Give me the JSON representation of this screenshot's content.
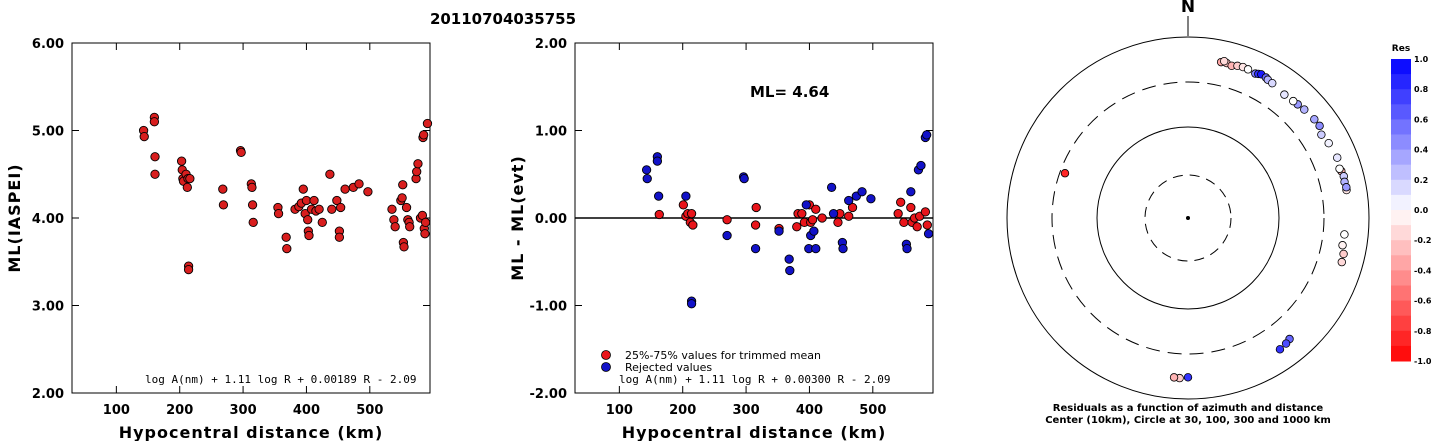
{
  "chart_data": [
    {
      "type": "scatter",
      "title": "20110704035755",
      "xlabel": "Hypocentral distance (km)",
      "ylabel": "ML(IASPEI)",
      "xlim": [
        30,
        595
      ],
      "ylim": [
        2.0,
        6.0
      ],
      "xticks": [
        "100",
        "200",
        "300",
        "400",
        "500"
      ],
      "yticks": [
        "2.00",
        "3.00",
        "4.00",
        "5.00",
        "6.00"
      ],
      "formula": "log A(nm) + 1.11 log R + 0.00189 R - 2.09",
      "points": [
        [
          143,
          5.0
        ],
        [
          144,
          4.93
        ],
        [
          160,
          5.15
        ],
        [
          160,
          5.1
        ],
        [
          161,
          4.7
        ],
        [
          161,
          4.5
        ],
        [
          203,
          4.65
        ],
        [
          204,
          4.55
        ],
        [
          205,
          4.45
        ],
        [
          206,
          4.42
        ],
        [
          210,
          4.5
        ],
        [
          212,
          4.35
        ],
        [
          213,
          4.45
        ],
        [
          216,
          4.45
        ],
        [
          214,
          3.45
        ],
        [
          214,
          3.41
        ],
        [
          268,
          4.33
        ],
        [
          269,
          4.15
        ],
        [
          296,
          4.77
        ],
        [
          297,
          4.75
        ],
        [
          313,
          4.39
        ],
        [
          314,
          4.35
        ],
        [
          315,
          4.15
        ],
        [
          316,
          3.95
        ],
        [
          355,
          4.12
        ],
        [
          356,
          4.05
        ],
        [
          368,
          3.78
        ],
        [
          369,
          3.65
        ],
        [
          382,
          4.1
        ],
        [
          388,
          4.13
        ],
        [
          392,
          4.17
        ],
        [
          395,
          4.33
        ],
        [
          398,
          4.05
        ],
        [
          400,
          4.2
        ],
        [
          402,
          3.98
        ],
        [
          403,
          3.85
        ],
        [
          404,
          3.8
        ],
        [
          408,
          4.1
        ],
        [
          412,
          4.2
        ],
        [
          415,
          4.08
        ],
        [
          420,
          4.1
        ],
        [
          425,
          3.95
        ],
        [
          437,
          4.5
        ],
        [
          440,
          4.1
        ],
        [
          448,
          4.2
        ],
        [
          452,
          3.85
        ],
        [
          452,
          3.78
        ],
        [
          454,
          4.12
        ],
        [
          461,
          4.33
        ],
        [
          474,
          4.35
        ],
        [
          483,
          4.39
        ],
        [
          497,
          4.3
        ],
        [
          535,
          4.1
        ],
        [
          538,
          3.98
        ],
        [
          540,
          3.9
        ],
        [
          549,
          4.2
        ],
        [
          551,
          4.23
        ],
        [
          552,
          4.38
        ],
        [
          553,
          3.72
        ],
        [
          554,
          3.67
        ],
        [
          558,
          4.12
        ],
        [
          560,
          3.98
        ],
        [
          562,
          3.95
        ],
        [
          563,
          3.9
        ],
        [
          573,
          4.45
        ],
        [
          574,
          4.53
        ],
        [
          576,
          4.62
        ],
        [
          580,
          4.0
        ],
        [
          583,
          4.03
        ],
        [
          584,
          4.92
        ],
        [
          585,
          4.95
        ],
        [
          586,
          3.88
        ],
        [
          587,
          3.82
        ],
        [
          588,
          3.95
        ],
        [
          591,
          5.08
        ]
      ]
    },
    {
      "type": "scatter",
      "xlabel": "Hypocentral distance (km)",
      "ylabel": "ML - ML(evt)",
      "xlim": [
        30,
        595
      ],
      "ylim": [
        -2.0,
        2.0
      ],
      "xticks": [
        "100",
        "200",
        "300",
        "400",
        "500"
      ],
      "yticks": [
        "-2.00",
        "-1.00",
        "0.00",
        "1.00",
        "2.00"
      ],
      "annotation": "ML= 4.64",
      "hline": 0,
      "formula": "log A(nm) + 1.11 log R + 0.00300 R - 2.09",
      "series": [
        {
          "name": "25%-75% values for trimmed mean",
          "color": "#e8151b",
          "points": [
            [
              163,
              0.04
            ],
            [
              201,
              0.15
            ],
            [
              205,
              0.02
            ],
            [
              208,
              0.05
            ],
            [
              212,
              -0.05
            ],
            [
              214,
              0.05
            ],
            [
              216,
              -0.08
            ],
            [
              270,
              -0.02
            ],
            [
              315,
              -0.08
            ],
            [
              316,
              0.12
            ],
            [
              352,
              -0.12
            ],
            [
              380,
              -0.1
            ],
            [
              382,
              0.05
            ],
            [
              388,
              0.05
            ],
            [
              392,
              -0.05
            ],
            [
              400,
              0.15
            ],
            [
              402,
              -0.05
            ],
            [
              405,
              -0.02
            ],
            [
              410,
              0.1
            ],
            [
              420,
              0.0
            ],
            [
              445,
              -0.05
            ],
            [
              448,
              0.05
            ],
            [
              462,
              0.02
            ],
            [
              468,
              0.12
            ],
            [
              540,
              0.05
            ],
            [
              544,
              0.18
            ],
            [
              549,
              -0.05
            ],
            [
              560,
              0.12
            ],
            [
              562,
              -0.05
            ],
            [
              566,
              0.0
            ],
            [
              570,
              -0.1
            ],
            [
              574,
              0.02
            ],
            [
              583,
              0.07
            ],
            [
              586,
              -0.08
            ]
          ]
        },
        {
          "name": "Rejected values",
          "color": "#1212c8",
          "points": [
            [
              143,
              0.55
            ],
            [
              144,
              0.45
            ],
            [
              160,
              0.7
            ],
            [
              160,
              0.65
            ],
            [
              162,
              0.25
            ],
            [
              205,
              0.25
            ],
            [
              214,
              -0.95
            ],
            [
              214,
              -0.98
            ],
            [
              270,
              -0.2
            ],
            [
              296,
              0.47
            ],
            [
              297,
              0.45
            ],
            [
              315,
              -0.35
            ],
            [
              352,
              -0.15
            ],
            [
              368,
              -0.47
            ],
            [
              369,
              -0.6
            ],
            [
              395,
              0.15
            ],
            [
              399,
              -0.35
            ],
            [
              402,
              -0.2
            ],
            [
              407,
              -0.15
            ],
            [
              410,
              -0.35
            ],
            [
              435,
              0.35
            ],
            [
              438,
              0.05
            ],
            [
              452,
              -0.28
            ],
            [
              453,
              -0.35
            ],
            [
              462,
              0.2
            ],
            [
              474,
              0.25
            ],
            [
              483,
              0.3
            ],
            [
              497,
              0.22
            ],
            [
              553,
              -0.3
            ],
            [
              554,
              -0.35
            ],
            [
              560,
              0.3
            ],
            [
              572,
              0.55
            ],
            [
              576,
              0.6
            ],
            [
              583,
              0.92
            ],
            [
              585,
              0.95
            ],
            [
              588,
              -0.18
            ]
          ]
        }
      ]
    },
    {
      "type": "polar-scatter",
      "north_label": "N",
      "caption_lines": [
        "Residuals as a function of azimuth and distance",
        "Center (10km), Circle at 30, 100, 300 and 1000 km"
      ],
      "colorbar": {
        "title": "Res",
        "ticks": [
          "1.0",
          "0.8",
          "0.6",
          "0.4",
          "0.2",
          "0.0",
          "-0.2",
          "-0.4",
          "-0.6",
          "-0.8",
          "-1.0"
        ]
      },
      "points": [
        {
          "az": 12,
          "dist_km": 530,
          "res": 0.0
        },
        {
          "az": 16,
          "dist_km": 560,
          "res": 0.05
        }
      ]
    }
  ]
}
